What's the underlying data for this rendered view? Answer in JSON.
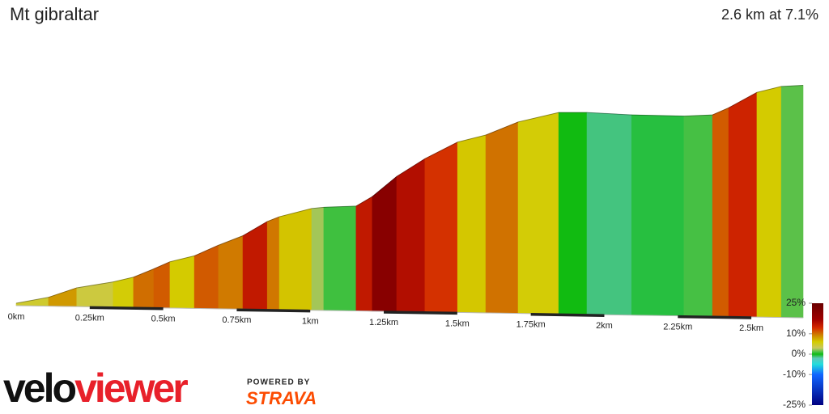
{
  "chart_data": {
    "type": "elevation-profile",
    "title": "Mt gibraltar",
    "subtitle": "2.6 km at 7.1%",
    "x": [
      0,
      0.11,
      0.206,
      0.33,
      0.399,
      0.468,
      0.523,
      0.606,
      0.688,
      0.771,
      0.854,
      0.895,
      1.005,
      1.046,
      1.156,
      1.211,
      1.294,
      1.39,
      1.501,
      1.597,
      1.707,
      1.845,
      1.941,
      2.093,
      2.271,
      2.368,
      2.423,
      2.519,
      2.602,
      2.676
    ],
    "values": [
      0,
      5,
      13,
      18,
      22,
      29,
      35,
      40,
      49,
      57,
      69,
      73,
      80,
      81,
      82,
      90,
      107,
      122,
      136,
      142,
      153,
      161,
      161,
      159,
      158,
      159,
      165,
      178,
      183,
      184
    ],
    "xlim": [
      0,
      2.676
    ],
    "ylim": [
      0,
      185
    ],
    "xticks": [
      {
        "value": 0,
        "label": "0km"
      },
      {
        "value": 0.25,
        "label": "0.25km"
      },
      {
        "value": 0.5,
        "label": "0.5km"
      },
      {
        "value": 0.75,
        "label": "0.75km"
      },
      {
        "value": 1,
        "label": "1km"
      },
      {
        "value": 1.25,
        "label": "1.25km"
      },
      {
        "value": 1.5,
        "label": "1.5km"
      },
      {
        "value": 1.75,
        "label": "1.75km"
      },
      {
        "value": 2,
        "label": "2km"
      },
      {
        "value": 2.25,
        "label": "2.25km"
      },
      {
        "value": 2.5,
        "label": "2.5km"
      }
    ],
    "colorscale": [
      {
        "value": 25,
        "color": "#6a0000"
      },
      {
        "value": 17,
        "color": "#a00000"
      },
      {
        "value": 13,
        "color": "#d42800"
      },
      {
        "value": 9,
        "color": "#cf8a00"
      },
      {
        "value": 6,
        "color": "#d4cc00"
      },
      {
        "value": 3,
        "color": "#c8c860"
      },
      {
        "value": 1,
        "color": "#44c044"
      },
      {
        "value": 0,
        "color": "#11bb11"
      },
      {
        "value": -2,
        "color": "#5ec8b8"
      },
      {
        "value": -5,
        "color": "#22dddd"
      },
      {
        "value": -10,
        "color": "#1166ff"
      },
      {
        "value": -25,
        "color": "#000080"
      }
    ],
    "cticks": [
      {
        "value": 25,
        "label": "25%"
      },
      {
        "value": 10,
        "label": "10%"
      },
      {
        "value": 0,
        "label": "0%"
      },
      {
        "value": -10,
        "label": "-10%"
      },
      {
        "value": -25,
        "label": "-25%"
      }
    ],
    "brand": [
      "velo",
      "viewer"
    ],
    "powered_by": "POWERED BY",
    "strava": "STRAVA"
  }
}
